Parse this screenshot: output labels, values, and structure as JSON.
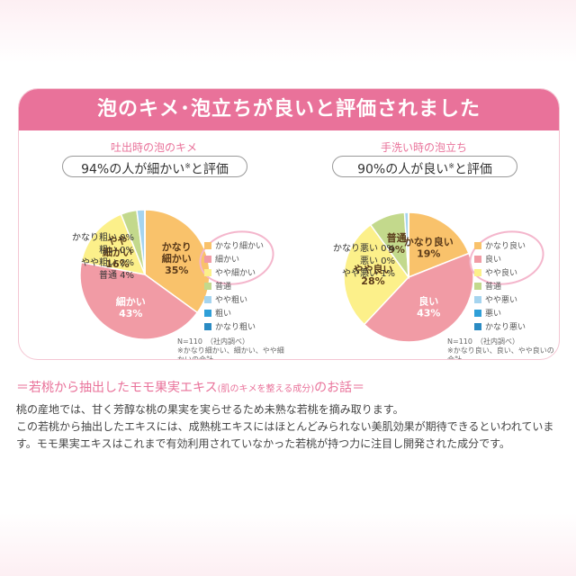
{
  "banner": "泡のキメ･泡立ちが良いと評価されました",
  "charts": [
    {
      "title": "吐出時の泡のキメ",
      "summary": "94%の人が細かい",
      "summary_mark": "※",
      "summary_tail": "と評価",
      "note1": "N=110　（社内調べ）",
      "note2": "※かなり細かい、細かい、やや細かいの合計"
    },
    {
      "title": "手洗い時の泡立ち",
      "summary": "90%の人が良い",
      "summary_mark": "※",
      "summary_tail": "と評価",
      "note1": "N=110　（社内調べ）",
      "note2": "※かなり良い、良い、やや良いの合計"
    }
  ],
  "chart_data": [
    {
      "type": "pie",
      "title": "吐出時の泡のキメ",
      "slices": [
        {
          "label": "かなり細かい",
          "value": 35,
          "color": "#f9c26b"
        },
        {
          "label": "細かい",
          "value": 43,
          "color": "#f19ba5"
        },
        {
          "label": "やや細かい",
          "value": 16,
          "color": "#fcf08a"
        },
        {
          "label": "普通",
          "value": 4,
          "color": "#c3d98c"
        },
        {
          "label": "やや粗い",
          "value": 2,
          "color": "#a5d4ef"
        },
        {
          "label": "粗い",
          "value": 0,
          "color": "#2f9fd8"
        },
        {
          "label": "かなり粗い",
          "value": 0,
          "color": "#2a8bc3"
        }
      ],
      "inner_labels": [
        {
          "text": "かなり\n細かい\n35%"
        },
        {
          "text": "細かい\n43%"
        },
        {
          "text": "やや\n細かい\n16%"
        }
      ],
      "outer_labels": [
        "かなり粗い 0%",
        "粗い 0%",
        "やや粗い 2%",
        "普通 4%"
      ]
    },
    {
      "type": "pie",
      "title": "手洗い時の泡立ち",
      "slices": [
        {
          "label": "かなり良い",
          "value": 19,
          "color": "#f9c26b"
        },
        {
          "label": "良い",
          "value": 43,
          "color": "#f19ba5"
        },
        {
          "label": "やや良い",
          "value": 28,
          "color": "#fcf08a"
        },
        {
          "label": "普通",
          "value": 9,
          "color": "#c3d98c"
        },
        {
          "label": "やや悪い",
          "value": 1,
          "color": "#a5d4ef"
        },
        {
          "label": "悪い",
          "value": 0,
          "color": "#2f9fd8"
        },
        {
          "label": "かなり悪い",
          "value": 0,
          "color": "#2a8bc3"
        }
      ],
      "inner_labels": [
        {
          "text": "かなり良い\n19%"
        },
        {
          "text": "良い\n43%"
        },
        {
          "text": "やや良い\n28%"
        },
        {
          "text": "普通\n9%"
        }
      ],
      "outer_labels": [
        "かなり悪い 0%",
        "悪い 0%",
        "やや悪い 1%"
      ]
    }
  ],
  "section": {
    "title": "＝若桃から抽出したモモ果実エキス",
    "title_small": "(肌のキメを整える成分)",
    "title_tail": "のお話＝",
    "p1": "桃の産地では、甘く芳醇な桃の果実を実らせるため未熟な若桃を摘み取ります。",
    "p2": "この若桃から抽出したエキスには、成熟桃エキスにはほとんどみられない美肌効果が期待できるといわれています。モモ果実エキスはこれまで有効利用されていなかった若桃が持つ力に注目し開発された成分です。"
  }
}
